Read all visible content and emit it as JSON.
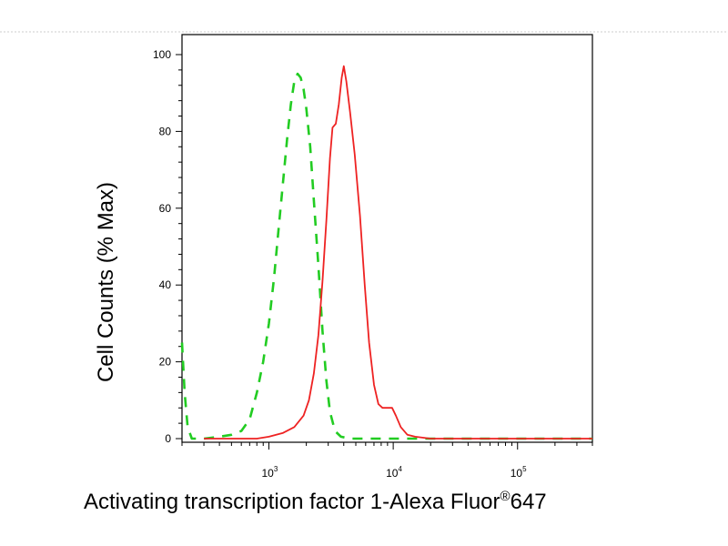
{
  "chart_data": {
    "type": "line",
    "title": "",
    "xlabel": "Activating transcription factor 1-Alexa Fluor",
    "xlabel_superscript": "®",
    "xlabel_suffix": "647",
    "ylabel": "Cell Counts (% Max)",
    "x_scale": "log",
    "xlim": [
      200,
      400000
    ],
    "ylim": [
      0,
      100
    ],
    "y_ticks": [
      0,
      20,
      40,
      60,
      80,
      100
    ],
    "y_tick_labels": [
      "0",
      "20",
      "40",
      "60",
      "80",
      "100"
    ],
    "x_ticks": [
      1000,
      10000,
      100000
    ],
    "x_tick_labels": [
      {
        "base": "10",
        "exp": "3"
      },
      {
        "base": "10",
        "exp": "4"
      },
      {
        "base": "10",
        "exp": "5"
      }
    ],
    "grid": false,
    "legend": false,
    "series": [
      {
        "color": "#22cc22",
        "style": "dashed",
        "points": [
          [
            200,
            25
          ],
          [
            210,
            12
          ],
          [
            222,
            3
          ],
          [
            240,
            0
          ],
          [
            300,
            0
          ],
          [
            400,
            0.5
          ],
          [
            500,
            1
          ],
          [
            600,
            2
          ],
          [
            700,
            5
          ],
          [
            800,
            12
          ],
          [
            900,
            20
          ],
          [
            1000,
            30
          ],
          [
            1100,
            42
          ],
          [
            1200,
            55
          ],
          [
            1300,
            67
          ],
          [
            1400,
            78
          ],
          [
            1500,
            87
          ],
          [
            1600,
            93
          ],
          [
            1700,
            95
          ],
          [
            1800,
            94
          ],
          [
            1900,
            91
          ],
          [
            2000,
            86
          ],
          [
            2150,
            76
          ],
          [
            2300,
            62
          ],
          [
            2500,
            45
          ],
          [
            2700,
            28
          ],
          [
            2900,
            15
          ],
          [
            3100,
            7
          ],
          [
            3400,
            2
          ],
          [
            3800,
            0.5
          ],
          [
            4500,
            0
          ],
          [
            8000,
            0
          ],
          [
            20000,
            0
          ],
          [
            100000,
            0
          ],
          [
            400000,
            0
          ]
        ]
      },
      {
        "color": "#ee2222",
        "style": "solid",
        "points": [
          [
            300,
            0
          ],
          [
            800,
            0
          ],
          [
            1000,
            0.5
          ],
          [
            1300,
            1.5
          ],
          [
            1600,
            3
          ],
          [
            1900,
            6
          ],
          [
            2100,
            10
          ],
          [
            2300,
            17
          ],
          [
            2500,
            27
          ],
          [
            2700,
            41
          ],
          [
            2900,
            57
          ],
          [
            3100,
            73
          ],
          [
            3250,
            81
          ],
          [
            3450,
            82
          ],
          [
            3650,
            87
          ],
          [
            3850,
            94
          ],
          [
            4000,
            97
          ],
          [
            4200,
            93
          ],
          [
            4500,
            85
          ],
          [
            4900,
            74
          ],
          [
            5400,
            58
          ],
          [
            5900,
            40
          ],
          [
            6400,
            25
          ],
          [
            7000,
            14
          ],
          [
            7600,
            9
          ],
          [
            8200,
            8
          ],
          [
            9000,
            8
          ],
          [
            9800,
            8
          ],
          [
            10500,
            6
          ],
          [
            11500,
            3
          ],
          [
            13000,
            1
          ],
          [
            15000,
            0.5
          ],
          [
            20000,
            0
          ],
          [
            100000,
            0
          ],
          [
            400000,
            0
          ]
        ]
      }
    ]
  }
}
